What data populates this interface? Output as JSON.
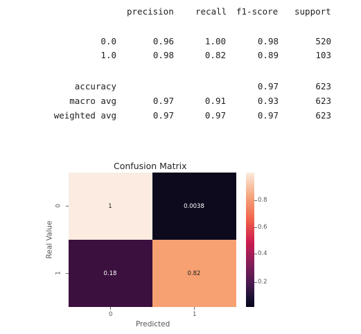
{
  "report": {
    "headers": [
      "precision",
      "recall",
      "f1-score",
      "support"
    ],
    "rows": [
      {
        "label": "0.0",
        "precision": "0.96",
        "recall": "1.00",
        "f1": "0.98",
        "support": "520"
      },
      {
        "label": "1.0",
        "precision": "0.98",
        "recall": "0.82",
        "f1": "0.89",
        "support": "103"
      },
      {
        "label": "accuracy",
        "precision": "",
        "recall": "",
        "f1": "0.97",
        "support": "623"
      },
      {
        "label": "macro avg",
        "precision": "0.97",
        "recall": "0.91",
        "f1": "0.93",
        "support": "623"
      },
      {
        "label": "weighted avg",
        "precision": "0.97",
        "recall": "0.97",
        "f1": "0.97",
        "support": "623"
      }
    ]
  },
  "chart_data": {
    "type": "heatmap",
    "title": "Confusion Matrix",
    "xlabel": "Predicted",
    "ylabel": "Real Value",
    "x_ticks": [
      "0",
      "1"
    ],
    "y_ticks": [
      "0",
      "1"
    ],
    "values": [
      [
        1,
        0.0038
      ],
      [
        0.18,
        0.82
      ]
    ],
    "annotations": [
      [
        "1",
        "0.0038"
      ],
      [
        "0.18",
        "0.82"
      ]
    ],
    "colorbar": {
      "min": 0,
      "max": 1,
      "ticks": [
        "0.8",
        "0.6",
        "0.4",
        "0.2"
      ]
    },
    "cell_colors": [
      [
        "#fbebe0",
        "#0d0a1e"
      ],
      [
        "#3b0f3e",
        "#f7a072"
      ]
    ],
    "annotation_colors": [
      [
        "#222222",
        "#ffffff"
      ],
      [
        "#ffffff",
        "#222222"
      ]
    ]
  }
}
